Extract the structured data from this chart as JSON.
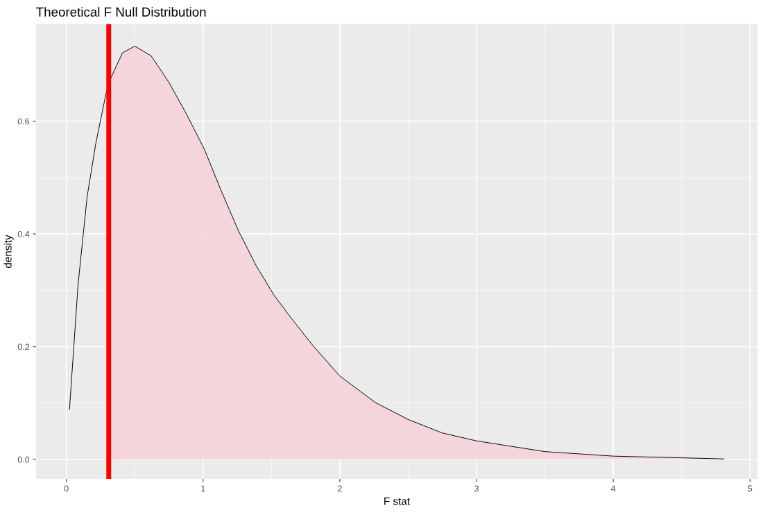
{
  "chart_data": {
    "type": "line",
    "title": "Theoretical F Null Distribution",
    "xlabel": "F stat",
    "ylabel": "density",
    "series": [
      {
        "type": "area",
        "color": "#f6d1d8",
        "x": [
          0.31,
          0.326,
          0.41,
          0.5,
          0.62,
          0.75,
          0.88,
          1.01,
          1.13,
          1.26,
          1.39,
          1.52,
          1.65,
          1.8,
          2.0,
          2.26,
          2.5,
          2.75,
          3.0,
          3.5,
          4.0,
          4.5,
          4.81
        ],
        "values": [
          0.665,
          0.677,
          0.721,
          0.733,
          0.716,
          0.669,
          0.612,
          0.55,
          0.478,
          0.405,
          0.343,
          0.291,
          0.249,
          0.203,
          0.148,
          0.101,
          0.071,
          0.047,
          0.033,
          0.014,
          0.006,
          0.003,
          0.001
        ]
      },
      {
        "color": "#000000",
        "x": [
          0.023,
          0.086,
          0.152,
          0.215,
          0.29,
          0.326,
          0.41,
          0.5,
          0.62,
          0.75,
          0.88,
          1.01,
          1.13,
          1.26,
          1.39,
          1.52,
          1.65,
          1.8,
          2.0,
          2.26,
          2.5,
          2.75,
          3.0,
          3.5,
          4.0,
          4.5,
          4.81
        ],
        "values": [
          0.089,
          0.311,
          0.466,
          0.56,
          0.649,
          0.677,
          0.721,
          0.733,
          0.716,
          0.669,
          0.612,
          0.55,
          0.478,
          0.405,
          0.343,
          0.291,
          0.249,
          0.203,
          0.148,
          0.101,
          0.071,
          0.047,
          0.033,
          0.014,
          0.006,
          0.003,
          0.001
        ]
      }
    ],
    "ref_lines": [
      {
        "axis": "x",
        "value": 0.31,
        "color": "#ff0000"
      }
    ],
    "xlim": [
      -0.223,
      5.056
    ],
    "ylim": [
      -0.0345,
      0.772
    ],
    "xticks": [
      0,
      1,
      2,
      3,
      4,
      5
    ],
    "yticks": [
      {
        "value": 0,
        "label": "0.0"
      },
      {
        "value": 0.2,
        "label": "0.2"
      },
      {
        "value": 0.4,
        "label": "0.4"
      },
      {
        "value": 0.6,
        "label": "0.6"
      }
    ],
    "grid": true
  }
}
